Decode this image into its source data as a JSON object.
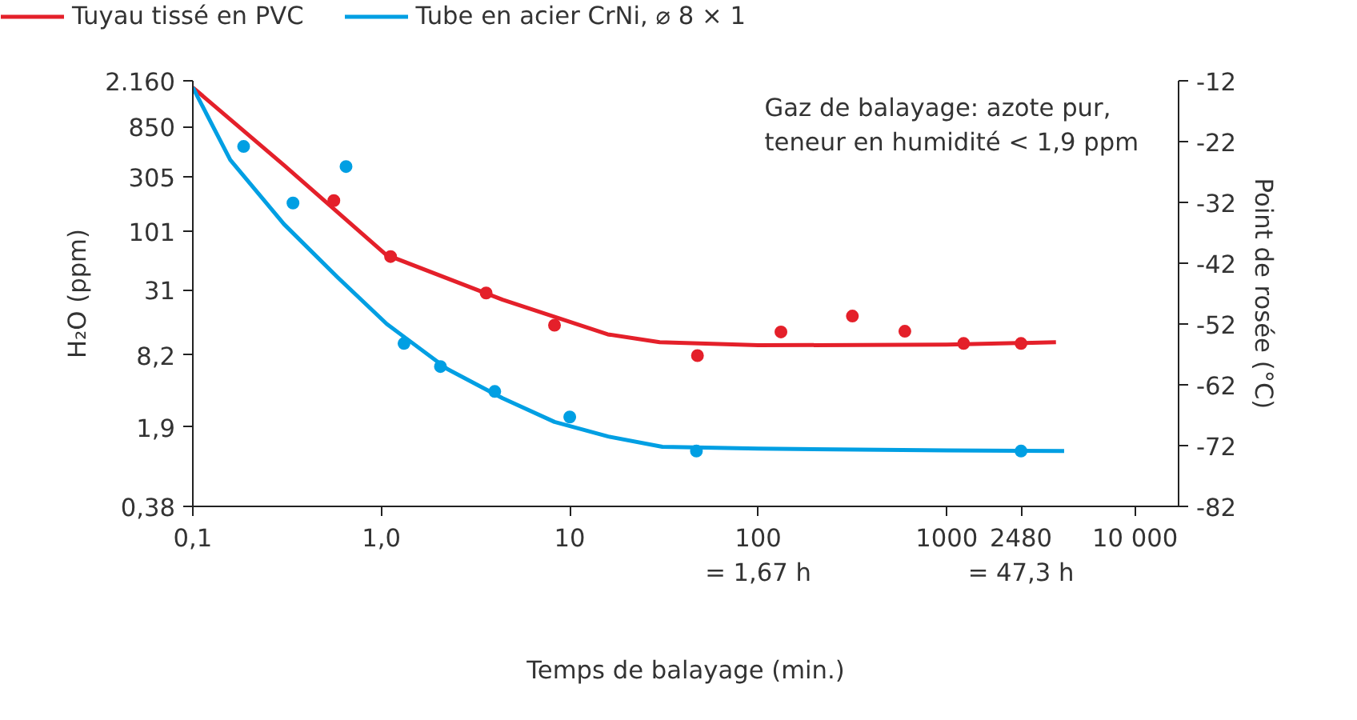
{
  "chart_data": {
    "type": "line",
    "xlabel": "Temps de balayage (min.)",
    "ylabel": "H₂O (ppm)",
    "y2label": "Point de rosée (°C)",
    "annotations": [
      "Gaz de balayage: azote pur,\nteneur en humidité < 1,9 ppm"
    ],
    "log": "xy",
    "grid": false,
    "legend": "top left",
    "xlim": [
      0.1,
      17000
    ],
    "xticks": [
      {
        "value": 0.1,
        "label": "0,1"
      },
      {
        "value": 1,
        "label": "1,0"
      },
      10,
      {
        "value": 100,
        "label": "100\n= 1,67 h"
      },
      1000,
      {
        "value": 2480,
        "label": "2480\n= 47,3 h"
      },
      {
        "value": 10000,
        "label": "10 000"
      }
    ],
    "ylim": [
      0.38,
      2160
    ],
    "yticks": [
      {
        "value": 0.38,
        "label": "0,38"
      },
      {
        "value": 1.9,
        "label": "1,9"
      },
      {
        "value": 8.2,
        "label": "8,2"
      },
      31,
      101,
      305,
      850,
      {
        "value": 2160,
        "label": "2.160"
      }
    ],
    "y2lim": [
      -82,
      -12
    ],
    "y2ticks": [
      -82,
      -72,
      -62,
      -52,
      -42,
      -32,
      -22,
      -12
    ],
    "series": [
      {
        "name": "Tuyau tissé en PVC",
        "axis": "y2",
        "color": "#e4202a",
        "x": [
          0.1,
          0.305,
          1.06,
          4.4,
          15.9,
          30,
          100,
          1000,
          3800
        ],
        "values": [
          -13.1,
          -25.9,
          -40.6,
          -48,
          -53.7,
          -55,
          -55.5,
          -55.4,
          -55
        ]
      },
      {
        "name": "Tube en acier CrNi, ⌀ 8 × 1",
        "axis": "y2",
        "color": "#009fe3",
        "x": [
          0.1,
          0.158,
          0.305,
          0.59,
          1.07,
          2.24,
          4.4,
          8.3,
          16,
          31,
          100,
          1000,
          4200
        ],
        "values": [
          -13.1,
          -25,
          -35.6,
          -44.4,
          -52,
          -59.4,
          -64.2,
          -68.1,
          -70.5,
          -72.2,
          -72.5,
          -72.8,
          -72.9
        ]
      },
      {
        "type": "scatter",
        "axis": "y2",
        "marker": "circle",
        "color": "#e4202a",
        "x": [
          0.56,
          1.12,
          3.6,
          8.3,
          47.6,
          132,
          316,
          600,
          1230,
          2480
        ],
        "values": [
          -31.7,
          -40.9,
          -46.9,
          -52.2,
          -57.2,
          -53.3,
          -50.7,
          -53.2,
          -55.2,
          -55.2
        ]
      },
      {
        "type": "scatter",
        "axis": "y2",
        "marker": "circle",
        "color": "#009fe3",
        "x": [
          0.186,
          0.34,
          0.65,
          1.32,
          2.06,
          4.0,
          10,
          47,
          2480
        ],
        "values": [
          -22.8,
          -32.1,
          -26.1,
          -55.2,
          -59.0,
          -63.1,
          -67.3,
          -72.9,
          -72.9
        ]
      }
    ]
  }
}
